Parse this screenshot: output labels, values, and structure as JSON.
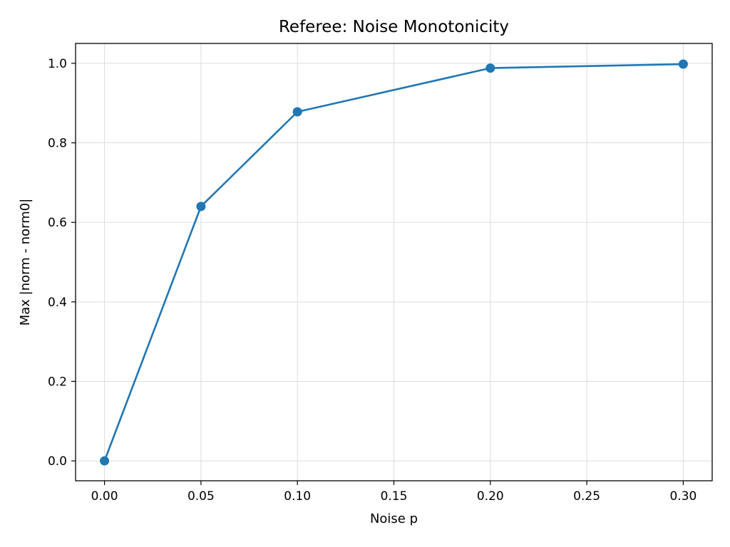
{
  "chart_data": {
    "type": "line",
    "title": "Referee: Noise Monotonicity",
    "xlabel": "Noise p",
    "ylabel": "Max |norm - norm0|",
    "xlim": [
      -0.015,
      0.315
    ],
    "ylim": [
      -0.05,
      1.05
    ],
    "x_ticks": [
      0.0,
      0.05,
      0.1,
      0.15,
      0.2,
      0.25,
      0.3
    ],
    "x_tick_labels": [
      "0.00",
      "0.05",
      "0.10",
      "0.15",
      "0.20",
      "0.25",
      "0.30"
    ],
    "y_ticks": [
      0.0,
      0.2,
      0.4,
      0.6,
      0.8,
      1.0
    ],
    "y_tick_labels": [
      "0.0",
      "0.2",
      "0.4",
      "0.6",
      "0.8",
      "1.0"
    ],
    "grid": true,
    "legend": "none",
    "series": [
      {
        "color": "#1f77b4",
        "marker": "circle",
        "x": [
          0.0,
          0.05,
          0.1,
          0.2,
          0.3
        ],
        "y": [
          0.0,
          0.64,
          0.878,
          0.988,
          0.998
        ]
      }
    ]
  }
}
